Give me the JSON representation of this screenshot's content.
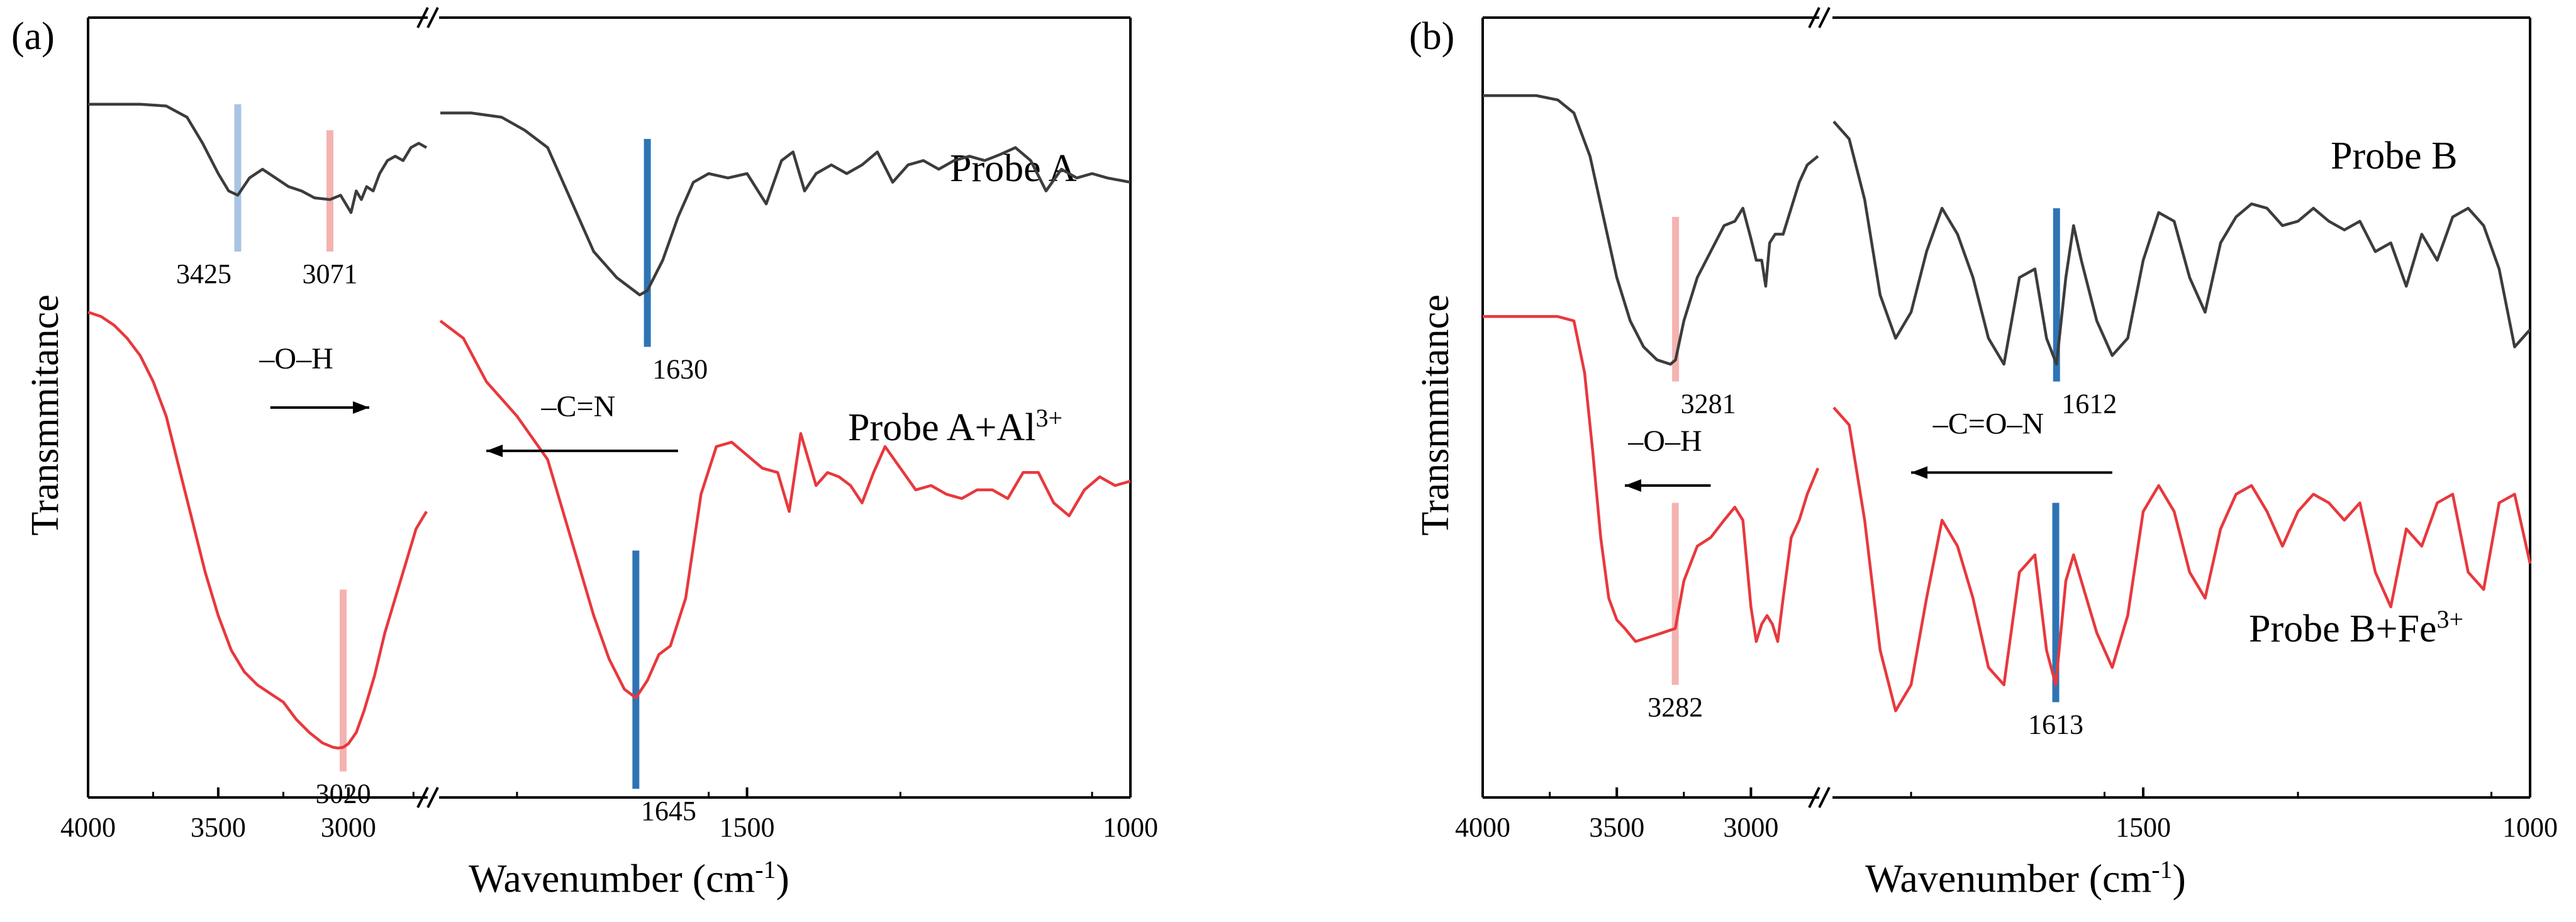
{
  "colors": {
    "probe": "#3c3c3c",
    "complex": "#e8383d",
    "oh_marker": "#f4b3b0",
    "oh_marker_blue": "#a9c4e4",
    "cn_marker": "#2e74b5",
    "axis": "#000000"
  },
  "chart_data": [
    {
      "type": "line",
      "panel_label": "(a)",
      "xlabel": "Wavenumber (cm-1)",
      "xlabel_main": "Wavenumber (cm",
      "xlabel_sup": "-1",
      "xlabel_close": ")",
      "ylabel": "Transmmitance",
      "x_reversed": true,
      "x_broken": true,
      "x_segments": [
        [
          4000,
          2700
        ],
        [
          1900,
          1000
        ]
      ],
      "xticks": [
        4000,
        3500,
        3000,
        1500,
        1000
      ],
      "xtick_labels": [
        "4000",
        "3500",
        "3000",
        "1500",
        "1000"
      ],
      "y_units": "arbitrary (offset curves)",
      "series": [
        {
          "name": "Probe A",
          "label_main": "Probe A",
          "label_sup": "",
          "segment1": {
            "x": [
              4000,
              3800,
              3700,
              3620,
              3560,
              3500,
              3460,
              3425,
              3380,
              3330,
              3280,
              3230,
              3180,
              3130,
              3071,
              3030,
              2990,
              2970,
              2950,
              2930,
              2905,
              2880,
              2850,
              2820,
              2790,
              2760,
              2730,
              2700
            ],
            "y": [
              0.9,
              0.9,
              0.898,
              0.885,
              0.855,
              0.82,
              0.8,
              0.795,
              0.815,
              0.825,
              0.815,
              0.805,
              0.8,
              0.792,
              0.79,
              0.795,
              0.775,
              0.8,
              0.79,
              0.805,
              0.8,
              0.82,
              0.835,
              0.84,
              0.835,
              0.85,
              0.855,
              0.85
            ]
          },
          "segment2": {
            "x": [
              1900,
              1860,
              1820,
              1790,
              1760,
              1730,
              1700,
              1670,
              1640,
              1630,
              1610,
              1590,
              1570,
              1550,
              1525,
              1500,
              1475,
              1455,
              1440,
              1425,
              1410,
              1390,
              1370,
              1350,
              1330,
              1310,
              1290,
              1270,
              1250,
              1230,
              1210,
              1190,
              1170,
              1150,
              1130,
              1110,
              1090,
              1070,
              1050,
              1030,
              1000
            ],
            "y": [
              0.89,
              0.89,
              0.885,
              0.87,
              0.85,
              0.79,
              0.73,
              0.7,
              0.68,
              0.685,
              0.72,
              0.77,
              0.81,
              0.82,
              0.815,
              0.82,
              0.785,
              0.835,
              0.845,
              0.8,
              0.82,
              0.83,
              0.82,
              0.83,
              0.845,
              0.81,
              0.83,
              0.835,
              0.825,
              0.835,
              0.84,
              0.835,
              0.842,
              0.85,
              0.835,
              0.8,
              0.825,
              0.815,
              0.82,
              0.815,
              0.81
            ]
          }
        },
        {
          "name": "Probe A+Al3+",
          "label_main": "Probe A+Al",
          "label_sup": "3+",
          "segment1": {
            "x": [
              4000,
              3950,
              3900,
              3850,
              3800,
              3750,
              3700,
              3650,
              3600,
              3550,
              3500,
              3450,
              3400,
              3350,
              3300,
              3250,
              3200,
              3150,
              3100,
              3060,
              3040,
              3020,
              3000,
              2970,
              2940,
              2900,
              2860,
              2820,
              2780,
              2740,
              2700
            ],
            "y": [
              0.66,
              0.655,
              0.645,
              0.63,
              0.61,
              0.58,
              0.54,
              0.48,
              0.42,
              0.36,
              0.31,
              0.27,
              0.245,
              0.23,
              0.22,
              0.21,
              0.19,
              0.175,
              0.163,
              0.158,
              0.157,
              0.158,
              0.162,
              0.175,
              0.2,
              0.24,
              0.29,
              0.33,
              0.37,
              0.41,
              0.43
            ]
          },
          "segment2": {
            "x": [
              1900,
              1870,
              1840,
              1800,
              1760,
              1730,
              1700,
              1680,
              1660,
              1645,
              1630,
              1615,
              1600,
              1580,
              1560,
              1540,
              1520,
              1500,
              1480,
              1460,
              1445,
              1430,
              1410,
              1395,
              1380,
              1365,
              1350,
              1335,
              1320,
              1300,
              1280,
              1260,
              1240,
              1220,
              1200,
              1180,
              1160,
              1140,
              1120,
              1100,
              1080,
              1060,
              1040,
              1020,
              1000
            ],
            "y": [
              0.65,
              0.63,
              0.58,
              0.54,
              0.49,
              0.4,
              0.31,
              0.26,
              0.225,
              0.215,
              0.235,
              0.265,
              0.275,
              0.33,
              0.45,
              0.505,
              0.51,
              0.495,
              0.48,
              0.475,
              0.43,
              0.52,
              0.46,
              0.475,
              0.47,
              0.46,
              0.44,
              0.475,
              0.505,
              0.48,
              0.455,
              0.46,
              0.45,
              0.445,
              0.455,
              0.455,
              0.445,
              0.475,
              0.475,
              0.44,
              0.425,
              0.455,
              0.47,
              0.46,
              0.465
            ]
          }
        }
      ],
      "markers": [
        {
          "x": 3425,
          "ytop": 0.9,
          "ybot": 0.73,
          "label": "3425",
          "label_pos": "below-left",
          "color_key": "oh_marker_blue"
        },
        {
          "x": 3071,
          "ytop": 0.87,
          "ybot": 0.73,
          "label": "3071",
          "label_pos": "below",
          "color_key": "oh_marker"
        },
        {
          "x": 1630,
          "ytop": 0.86,
          "ybot": 0.62,
          "label": "1630",
          "label_pos": "below-right",
          "color_key": "cn_marker"
        },
        {
          "x": 3020,
          "ytop": 0.34,
          "ybot": 0.13,
          "label": "3020",
          "label_pos": "below",
          "color_key": "oh_marker"
        },
        {
          "x": 1645,
          "ytop": 0.385,
          "ybot": 0.11,
          "label": "1645",
          "label_pos": "below-right",
          "color_key": "cn_marker"
        }
      ],
      "annotations": [
        {
          "text": "–O–H",
          "x": 3200,
          "y": 0.595,
          "arrow_from": 3300,
          "arrow_to": 2920,
          "arrow_y": 0.55
        },
        {
          "text": "–C=N",
          "x": 1720,
          "y": 0.54,
          "arrow_from": 1590,
          "arrow_to": 1840,
          "arrow_y": 0.5
        }
      ]
    },
    {
      "type": "line",
      "panel_label": "(b)",
      "xlabel": "Wavenumber (cm-1)",
      "xlabel_main": "Wavenumber (cm",
      "xlabel_sup": "-1",
      "xlabel_close": ")",
      "ylabel": "Transmmitance",
      "x_reversed": true,
      "x_broken": true,
      "x_segments": [
        [
          4000,
          2750
        ],
        [
          1900,
          1000
        ]
      ],
      "xticks": [
        4000,
        3500,
        3000,
        1500,
        1000
      ],
      "xtick_labels": [
        "4000",
        "3500",
        "3000",
        "1500",
        "1000"
      ],
      "y_units": "arbitrary (offset curves)",
      "series": [
        {
          "name": "Probe B",
          "label_main": "Probe B",
          "label_sup": "",
          "segment1": {
            "x": [
              4000,
              3900,
              3800,
              3720,
              3660,
              3600,
              3550,
              3500,
              3450,
              3400,
              3350,
              3300,
              3281,
              3250,
              3200,
              3150,
              3100,
              3060,
              3030,
              3000,
              2980,
              2960,
              2945,
              2930,
              2910,
              2880,
              2850,
              2820,
              2790,
              2750
            ],
            "y": [
              0.91,
              0.91,
              0.91,
              0.905,
              0.89,
              0.84,
              0.77,
              0.7,
              0.65,
              0.62,
              0.605,
              0.6,
              0.605,
              0.65,
              0.7,
              0.73,
              0.76,
              0.765,
              0.78,
              0.745,
              0.72,
              0.72,
              0.69,
              0.74,
              0.75,
              0.75,
              0.78,
              0.81,
              0.83,
              0.84
            ]
          },
          "segment2": {
            "x": [
              1900,
              1880,
              1860,
              1840,
              1820,
              1800,
              1780,
              1760,
              1740,
              1720,
              1700,
              1680,
              1660,
              1640,
              1625,
              1612,
              1600,
              1590,
              1580,
              1560,
              1540,
              1520,
              1500,
              1480,
              1460,
              1440,
              1420,
              1400,
              1380,
              1360,
              1340,
              1320,
              1300,
              1280,
              1260,
              1240,
              1220,
              1200,
              1180,
              1160,
              1140,
              1120,
              1100,
              1080,
              1060,
              1040,
              1020,
              1000
            ],
            "y": [
              0.88,
              0.86,
              0.79,
              0.68,
              0.63,
              0.66,
              0.73,
              0.78,
              0.75,
              0.7,
              0.63,
              0.6,
              0.7,
              0.71,
              0.63,
              0.6,
              0.7,
              0.76,
              0.72,
              0.65,
              0.61,
              0.63,
              0.72,
              0.775,
              0.765,
              0.7,
              0.66,
              0.74,
              0.77,
              0.785,
              0.78,
              0.76,
              0.765,
              0.78,
              0.765,
              0.755,
              0.765,
              0.73,
              0.74,
              0.69,
              0.75,
              0.72,
              0.77,
              0.78,
              0.76,
              0.71,
              0.62,
              0.64
            ]
          }
        },
        {
          "name": "Probe B+Fe3+",
          "label_main": "Probe B+Fe",
          "label_sup": "3+",
          "segment1": {
            "x": [
              4000,
              3900,
              3800,
              3720,
              3660,
              3620,
              3590,
              3560,
              3530,
              3500,
              3470,
              3430,
              3380,
              3330,
              3282,
              3250,
              3200,
              3150,
              3100,
              3060,
              3030,
              3000,
              2980,
              2960,
              2940,
              2920,
              2900,
              2880,
              2850,
              2820,
              2790,
              2750
            ],
            "y": [
              0.655,
              0.655,
              0.655,
              0.655,
              0.65,
              0.59,
              0.5,
              0.4,
              0.33,
              0.305,
              0.295,
              0.28,
              0.285,
              0.29,
              0.295,
              0.35,
              0.39,
              0.4,
              0.42,
              0.435,
              0.42,
              0.32,
              0.28,
              0.3,
              0.31,
              0.3,
              0.28,
              0.33,
              0.4,
              0.42,
              0.45,
              0.48
            ]
          },
          "segment2": {
            "x": [
              1900,
              1880,
              1860,
              1840,
              1820,
              1800,
              1780,
              1760,
              1740,
              1720,
              1700,
              1680,
              1660,
              1640,
              1625,
              1613,
              1600,
              1590,
              1580,
              1560,
              1540,
              1520,
              1500,
              1480,
              1460,
              1440,
              1420,
              1400,
              1380,
              1360,
              1340,
              1320,
              1300,
              1280,
              1260,
              1240,
              1220,
              1200,
              1180,
              1160,
              1140,
              1120,
              1100,
              1080,
              1060,
              1040,
              1020,
              1000
            ],
            "y": [
              0.55,
              0.53,
              0.42,
              0.27,
              0.2,
              0.23,
              0.33,
              0.42,
              0.39,
              0.33,
              0.25,
              0.23,
              0.36,
              0.38,
              0.27,
              0.23,
              0.35,
              0.38,
              0.35,
              0.29,
              0.25,
              0.31,
              0.43,
              0.46,
              0.43,
              0.36,
              0.33,
              0.41,
              0.45,
              0.46,
              0.43,
              0.39,
              0.43,
              0.45,
              0.44,
              0.42,
              0.44,
              0.36,
              0.32,
              0.41,
              0.39,
              0.44,
              0.45,
              0.36,
              0.34,
              0.44,
              0.45,
              0.37
            ]
          }
        }
      ],
      "markers": [
        {
          "x": 3281,
          "ytop": 0.77,
          "ybot": 0.58,
          "label": "3281",
          "label_pos": "below-right",
          "color_key": "oh_marker"
        },
        {
          "x": 1612,
          "ytop": 0.78,
          "ybot": 0.58,
          "label": "1612",
          "label_pos": "below-right",
          "color_key": "cn_marker"
        },
        {
          "x": 3282,
          "ytop": 0.44,
          "ybot": 0.23,
          "label": "3282",
          "label_pos": "below",
          "color_key": "oh_marker"
        },
        {
          "x": 1613,
          "ytop": 0.44,
          "ybot": 0.21,
          "label": "1613",
          "label_pos": "below",
          "color_key": "cn_marker"
        }
      ],
      "annotations": [
        {
          "text": "–O–H",
          "x": 3320,
          "y": 0.5,
          "arrow_from": 3150,
          "arrow_to": 3470,
          "arrow_y": 0.46
        },
        {
          "text": "–C=O–N",
          "x": 1700,
          "y": 0.52,
          "arrow_from": 1540,
          "arrow_to": 1800,
          "arrow_y": 0.475
        }
      ]
    }
  ]
}
